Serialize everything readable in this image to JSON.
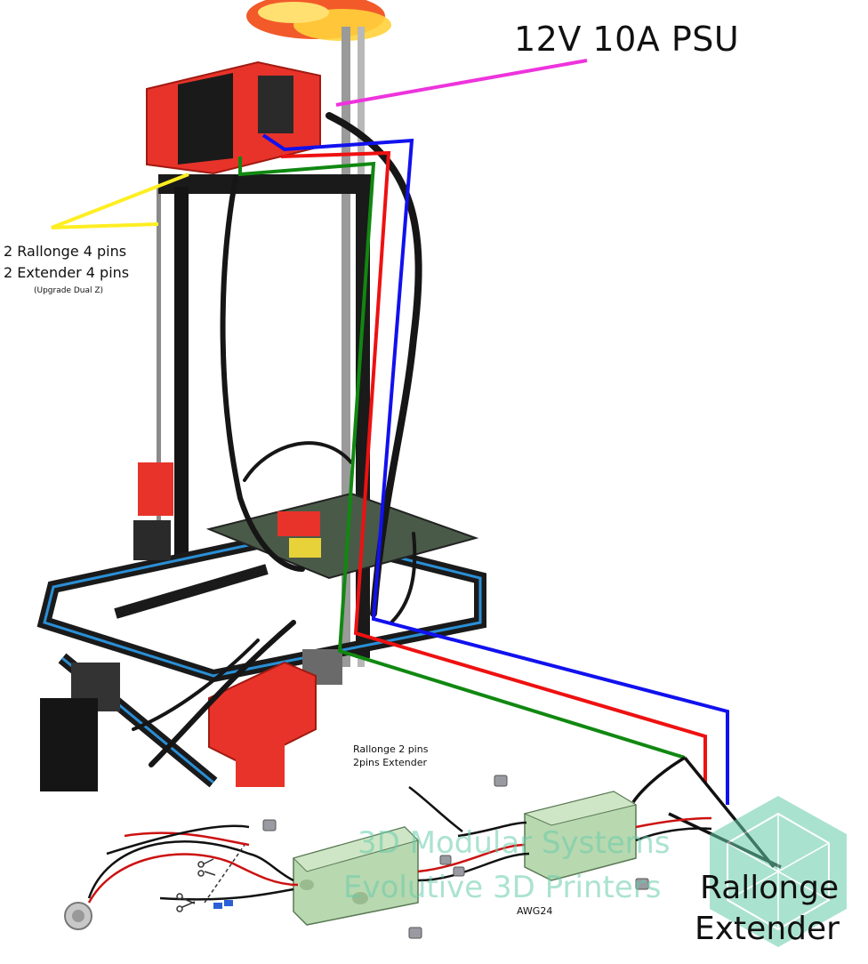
{
  "labels": {
    "psu": "12V 10A PSU",
    "z_cables_line1": "2 Rallonge 4 pins",
    "z_cables_line2": "2 Extender 4 pins",
    "z_cables_note": "(Upgrade Dual Z)",
    "two_pin_line1": "Rallonge 2 pins",
    "two_pin_line2": "2pins Extender",
    "awg": "AWG24",
    "rallonge": "Rallonge",
    "extender": "Extender"
  },
  "watermark": {
    "line1": "3D Modular Systems",
    "line2": "Evolutive 3D Printers",
    "color": "#66ccaa"
  },
  "colors": {
    "psu_wire": "#ee33dd",
    "blue_wire": "#1111ee",
    "red_wire": "#ee1111",
    "green_wire": "#118811",
    "yellow_pointer": "#ffee22",
    "printer_red": "#e8332a",
    "extrusion_blue": "#2a8fd6",
    "connector_green": "#b8d8b0"
  }
}
